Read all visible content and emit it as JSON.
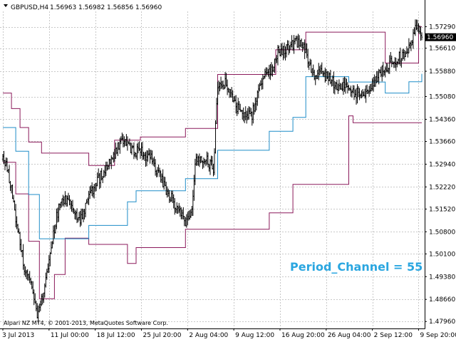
{
  "chart_data": {
    "type": "candlestick",
    "header": {
      "symbol_timeframe": "GBPUSD,H4",
      "open": "1.56963",
      "high": "1.56982",
      "low": "1.56856",
      "close": "1.56960"
    },
    "current_price": 1.5696,
    "current_price_label": "1.56960",
    "y_ticks": [
      1.5729,
      1.5661,
      1.5588,
      1.5508,
      1.5436,
      1.5366,
      1.5294,
      1.5222,
      1.5152,
      1.508,
      1.501,
      1.4938,
      1.4866,
      1.4796
    ],
    "y_tick_labels": [
      "1.57290",
      "1.56610",
      "1.55880",
      "1.55080",
      "1.54360",
      "1.53660",
      "1.52940",
      "1.52220",
      "1.51520",
      "1.50800",
      "1.50100",
      "1.49380",
      "1.48660",
      "1.47960"
    ],
    "x_tick_labels": [
      "3 Jul 2013",
      "11 Jul 00:00",
      "18 Jul 12:00",
      "25 Jul 20:00",
      "2 Aug 04:00",
      "9 Aug 12:00",
      "16 Aug 20:00",
      "26 Aug 04:00",
      "2 Sep 12:00",
      "9 Sep 20:00"
    ],
    "x_tick_bars": [
      0,
      43,
      86,
      129,
      172,
      215,
      258,
      301,
      344,
      387
    ],
    "ylim": [
      1.4774,
      1.5764
    ],
    "grid": true,
    "bar_count": 391,
    "price_path": [
      [
        0,
        1.531
      ],
      [
        4,
        1.528
      ],
      [
        8,
        1.522
      ],
      [
        12,
        1.511
      ],
      [
        16,
        1.505
      ],
      [
        20,
        1.497
      ],
      [
        24,
        1.492
      ],
      [
        28,
        1.489
      ],
      [
        32,
        1.482
      ],
      [
        36,
        1.486
      ],
      [
        40,
        1.493
      ],
      [
        44,
        1.5
      ],
      [
        48,
        1.509
      ],
      [
        52,
        1.516
      ],
      [
        58,
        1.519
      ],
      [
        64,
        1.515
      ],
      [
        72,
        1.512
      ],
      [
        80,
        1.519
      ],
      [
        90,
        1.525
      ],
      [
        100,
        1.53
      ],
      [
        110,
        1.537
      ],
      [
        120,
        1.534
      ],
      [
        130,
        1.533
      ],
      [
        138,
        1.531
      ],
      [
        146,
        1.526
      ],
      [
        154,
        1.52
      ],
      [
        162,
        1.516
      ],
      [
        170,
        1.511
      ],
      [
        176,
        1.516
      ],
      [
        180,
        1.532
      ],
      [
        188,
        1.531
      ],
      [
        196,
        1.528
      ],
      [
        200,
        1.555
      ],
      [
        208,
        1.555
      ],
      [
        216,
        1.548
      ],
      [
        224,
        1.546
      ],
      [
        232,
        1.545
      ],
      [
        240,
        1.556
      ],
      [
        248,
        1.558
      ],
      [
        256,
        1.565
      ],
      [
        264,
        1.566
      ],
      [
        272,
        1.568
      ],
      [
        280,
        1.567
      ],
      [
        288,
        1.558
      ],
      [
        296,
        1.558
      ],
      [
        304,
        1.557
      ],
      [
        312,
        1.553
      ],
      [
        320,
        1.554
      ],
      [
        328,
        1.552
      ],
      [
        336,
        1.551
      ],
      [
        344,
        1.555
      ],
      [
        352,
        1.559
      ],
      [
        360,
        1.561
      ],
      [
        368,
        1.563
      ],
      [
        376,
        1.564
      ],
      [
        384,
        1.573
      ],
      [
        390,
        1.5696
      ]
    ],
    "series": [
      {
        "name": "",
        "color": "#8b1a5b",
        "steps": [
          [
            0,
            1.5519
          ],
          [
            8,
            1.547
          ],
          [
            16,
            1.541
          ],
          [
            24,
            1.5364
          ],
          [
            36,
            1.5329
          ],
          [
            80,
            1.529
          ],
          [
            104,
            1.537
          ],
          [
            128,
            1.538
          ],
          [
            170,
            1.5407
          ],
          [
            200,
            1.5578
          ],
          [
            254,
            1.5656
          ],
          [
            282,
            1.5712
          ],
          [
            356,
            1.5614
          ],
          [
            387,
            1.5729
          ]
        ]
      },
      {
        "name": "",
        "color": "#8b1a5b",
        "steps": [
          [
            0,
            1.53
          ],
          [
            12,
            1.52
          ],
          [
            24,
            1.505
          ],
          [
            34,
            1.4868
          ],
          [
            48,
            1.4945
          ],
          [
            58,
            1.506
          ],
          [
            80,
            1.504
          ],
          [
            116,
            1.498
          ],
          [
            124,
            1.503
          ],
          [
            170,
            1.5088
          ],
          [
            248,
            1.514
          ],
          [
            270,
            1.523
          ],
          [
            322,
            1.5447
          ],
          [
            326,
            1.5425
          ],
          [
            390,
            1.5425
          ]
        ]
      },
      {
        "name": "",
        "color": "#1f8dc8",
        "steps": [
          [
            0,
            1.541
          ],
          [
            12,
            1.5335
          ],
          [
            24,
            1.5198
          ],
          [
            34,
            1.5058
          ],
          [
            80,
            1.51
          ],
          [
            116,
            1.5175
          ],
          [
            124,
            1.521
          ],
          [
            170,
            1.5248
          ],
          [
            200,
            1.5338
          ],
          [
            248,
            1.5398
          ],
          [
            270,
            1.5442
          ],
          [
            282,
            1.5571
          ],
          [
            322,
            1.5554
          ],
          [
            356,
            1.5519
          ],
          [
            378,
            1.5555
          ],
          [
            390,
            1.558
          ]
        ]
      }
    ],
    "annotation": "Period_Channel = 55",
    "annotation_color": "#2aa6e0",
    "copyright": "Alpari NZ MT4, © 2001-2013, MetaQuotes Software Corp.",
    "candle_color": "#000000",
    "grid_color": "#c8c8c8",
    "price_label_bg": "#000000"
  }
}
